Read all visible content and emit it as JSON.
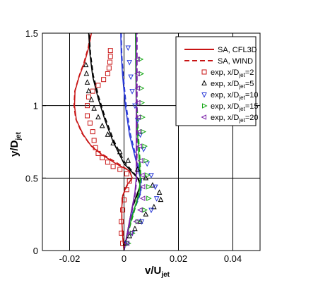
{
  "chart_data": {
    "type": "line",
    "xlabel": "v/U",
    "xlabel_sub": "jet",
    "ylabel": "y/D",
    "ylabel_sub": "jet",
    "xlim": [
      -0.03,
      0.05
    ],
    "ylim": [
      0,
      1.5
    ],
    "xticks": [
      -0.02,
      0,
      0.02,
      0.04
    ],
    "xtick_labels": [
      "-0.02",
      "0",
      "0.02",
      "0.04"
    ],
    "yticks": [
      0,
      0.5,
      1,
      1.5
    ],
    "ytick_labels": [
      "0",
      "0.5",
      "1",
      "1.5"
    ],
    "grid": true,
    "legend_position": "top-right",
    "legend": [
      {
        "key": "cfl3d",
        "label": "SA, CFL3D",
        "kind": "solid",
        "color": "#c81414"
      },
      {
        "key": "wind",
        "label": "SA, WIND",
        "kind": "dashed",
        "color": "#c81414"
      },
      {
        "key": "exp2",
        "label": "exp, x/D",
        "sub": "jet",
        "suffix": "=2",
        "kind": "marker",
        "marker": "square",
        "color": "#c81414"
      },
      {
        "key": "exp5",
        "label": "exp, x/D",
        "sub": "jet",
        "suffix": "=5",
        "kind": "marker",
        "marker": "triangle-up",
        "color": "#000000"
      },
      {
        "key": "exp10",
        "label": "exp, x/D",
        "sub": "jet",
        "suffix": "=10",
        "kind": "marker",
        "marker": "triangle-down",
        "color": "#2a3ad8"
      },
      {
        "key": "exp15",
        "label": "exp, x/D",
        "sub": "jet",
        "suffix": "=15",
        "kind": "marker",
        "marker": "triangle-right",
        "color": "#18a818"
      },
      {
        "key": "exp20",
        "label": "exp, x/D",
        "sub": "jet",
        "suffix": "=20",
        "kind": "marker",
        "marker": "triangle-left",
        "color": "#7a20a8"
      }
    ],
    "series": [
      {
        "key": "cfl3d_2",
        "kind": "solid",
        "color": "#c81414",
        "points": [
          [
            0,
            0
          ],
          [
            -0.0005,
            0.1
          ],
          [
            -0.0008,
            0.2
          ],
          [
            -0.0008,
            0.3
          ],
          [
            -0.0005,
            0.38
          ],
          [
            0.001,
            0.45
          ],
          [
            0.003,
            0.5
          ],
          [
            0.002,
            0.55
          ],
          [
            -0.003,
            0.6
          ],
          [
            -0.008,
            0.66
          ],
          [
            -0.012,
            0.72
          ],
          [
            -0.015,
            0.8
          ],
          [
            -0.0175,
            0.9
          ],
          [
            -0.0182,
            1.0
          ],
          [
            -0.018,
            1.1
          ],
          [
            -0.0165,
            1.2
          ],
          [
            -0.0145,
            1.3
          ],
          [
            -0.013,
            1.4
          ],
          [
            -0.012,
            1.5
          ]
        ]
      },
      {
        "key": "wind_2",
        "kind": "dashed",
        "color": "#c81414",
        "points": [
          [
            0,
            0
          ],
          [
            -0.0005,
            0.1
          ],
          [
            -0.0008,
            0.2
          ],
          [
            -0.0008,
            0.3
          ],
          [
            -0.0004,
            0.38
          ],
          [
            0.0012,
            0.45
          ],
          [
            0.003,
            0.5
          ],
          [
            0.002,
            0.55
          ],
          [
            -0.003,
            0.61
          ],
          [
            -0.0085,
            0.67
          ],
          [
            -0.0125,
            0.73
          ],
          [
            -0.0155,
            0.81
          ],
          [
            -0.0178,
            0.91
          ],
          [
            -0.0184,
            1.0
          ],
          [
            -0.0181,
            1.1
          ],
          [
            -0.0166,
            1.2
          ],
          [
            -0.0147,
            1.3
          ],
          [
            -0.0132,
            1.4
          ],
          [
            -0.0122,
            1.5
          ]
        ]
      },
      {
        "key": "cfl3d_5",
        "kind": "solid",
        "color": "#000000",
        "points": [
          [
            0,
            0
          ],
          [
            0.001,
            0.1
          ],
          [
            0.002,
            0.2
          ],
          [
            0.003,
            0.3
          ],
          [
            0.005,
            0.4
          ],
          [
            0.006,
            0.45
          ],
          [
            0.005,
            0.5
          ],
          [
            0.0,
            0.6
          ],
          [
            -0.004,
            0.75
          ],
          [
            -0.007,
            0.9
          ],
          [
            -0.0095,
            1.05
          ],
          [
            -0.0115,
            1.2
          ],
          [
            -0.0125,
            1.35
          ],
          [
            -0.013,
            1.5
          ]
        ]
      },
      {
        "key": "wind_5",
        "kind": "dashed",
        "color": "#000000",
        "points": [
          [
            0,
            0
          ],
          [
            0.001,
            0.1
          ],
          [
            0.0022,
            0.2
          ],
          [
            0.0032,
            0.3
          ],
          [
            0.0052,
            0.4
          ],
          [
            0.0062,
            0.45
          ],
          [
            0.0052,
            0.5
          ],
          [
            0.0002,
            0.61
          ],
          [
            -0.0038,
            0.76
          ],
          [
            -0.0068,
            0.91
          ],
          [
            -0.0093,
            1.06
          ],
          [
            -0.0113,
            1.21
          ],
          [
            -0.0123,
            1.36
          ],
          [
            -0.0128,
            1.5
          ]
        ]
      },
      {
        "key": "cfl3d_10",
        "kind": "solid",
        "color": "#2a3ad8",
        "points": [
          [
            0,
            0
          ],
          [
            0.001,
            0.1
          ],
          [
            0.002,
            0.2
          ],
          [
            0.004,
            0.3
          ],
          [
            0.006,
            0.4
          ],
          [
            0.006,
            0.5
          ],
          [
            0.004,
            0.65
          ],
          [
            0.002,
            0.8
          ],
          [
            0.0005,
            1.0
          ],
          [
            -0.0005,
            1.2
          ],
          [
            -0.001,
            1.35
          ],
          [
            -0.0012,
            1.5
          ]
        ]
      },
      {
        "key": "wind_10",
        "kind": "dashed",
        "color": "#2a3ad8",
        "points": [
          [
            0,
            0
          ],
          [
            0.0012,
            0.1
          ],
          [
            0.0024,
            0.2
          ],
          [
            0.0042,
            0.3
          ],
          [
            0.0062,
            0.4
          ],
          [
            0.0064,
            0.5
          ],
          [
            0.0044,
            0.65
          ],
          [
            0.0024,
            0.8
          ],
          [
            0.0008,
            1.0
          ],
          [
            -0.0002,
            1.2
          ],
          [
            -0.0008,
            1.35
          ],
          [
            -0.001,
            1.5
          ]
        ]
      },
      {
        "key": "cfl3d_15",
        "kind": "solid",
        "color": "#18a818",
        "points": [
          [
            0,
            0
          ],
          [
            0.001,
            0.1
          ],
          [
            0.0025,
            0.2
          ],
          [
            0.004,
            0.3
          ],
          [
            0.0055,
            0.4
          ],
          [
            0.006,
            0.5
          ],
          [
            0.0055,
            0.65
          ],
          [
            0.005,
            0.8
          ],
          [
            0.0045,
            1.0
          ],
          [
            0.0043,
            1.25
          ],
          [
            0.0042,
            1.5
          ]
        ]
      },
      {
        "key": "wind_15",
        "kind": "dashed",
        "color": "#18a818",
        "points": [
          [
            0,
            0
          ],
          [
            0.0012,
            0.1
          ],
          [
            0.0027,
            0.2
          ],
          [
            0.0042,
            0.3
          ],
          [
            0.0057,
            0.4
          ],
          [
            0.0062,
            0.5
          ],
          [
            0.0058,
            0.65
          ],
          [
            0.0053,
            0.8
          ],
          [
            0.0048,
            1.0
          ],
          [
            0.0046,
            1.25
          ],
          [
            0.0045,
            1.5
          ]
        ]
      },
      {
        "key": "cfl3d_20",
        "kind": "solid",
        "color": "#7a20a8",
        "points": [
          [
            0,
            0
          ],
          [
            0.001,
            0.1
          ],
          [
            0.002,
            0.2
          ],
          [
            0.003,
            0.3
          ],
          [
            0.004,
            0.4
          ],
          [
            0.0045,
            0.5
          ],
          [
            0.0045,
            0.7
          ],
          [
            0.0045,
            0.9
          ],
          [
            0.0045,
            1.1
          ],
          [
            0.0045,
            1.3
          ],
          [
            0.0045,
            1.5
          ]
        ]
      },
      {
        "key": "wind_20",
        "kind": "dashed",
        "color": "#7a20a8",
        "points": [
          [
            0,
            0
          ],
          [
            0.0012,
            0.1
          ],
          [
            0.0022,
            0.2
          ],
          [
            0.0032,
            0.3
          ],
          [
            0.0042,
            0.4
          ],
          [
            0.0047,
            0.5
          ],
          [
            0.0048,
            0.7
          ],
          [
            0.0048,
            0.9
          ],
          [
            0.0048,
            1.1
          ],
          [
            0.0048,
            1.3
          ],
          [
            0.0048,
            1.5
          ]
        ]
      },
      {
        "key": "exp2",
        "kind": "marker",
        "marker": "square",
        "color": "#c81414",
        "points": [
          [
            -0.0005,
            0.05
          ],
          [
            -0.001,
            0.12
          ],
          [
            -0.001,
            0.2
          ],
          [
            -0.0005,
            0.28
          ],
          [
            0.0,
            0.35
          ],
          [
            0.001,
            0.42
          ],
          [
            0.002,
            0.48
          ],
          [
            0.001,
            0.53
          ],
          [
            -0.0015,
            0.56
          ],
          [
            -0.004,
            0.58
          ],
          [
            -0.006,
            0.61
          ],
          [
            -0.008,
            0.64
          ],
          [
            -0.0095,
            0.67
          ],
          [
            -0.0105,
            0.71
          ],
          [
            -0.011,
            0.76
          ],
          [
            -0.0115,
            0.82
          ],
          [
            -0.0125,
            0.88
          ],
          [
            -0.0135,
            0.93
          ],
          [
            -0.0135,
            1.0
          ],
          [
            -0.013,
            1.06
          ],
          [
            -0.0115,
            1.1
          ],
          [
            -0.0095,
            1.14
          ],
          [
            -0.0075,
            1.18
          ],
          [
            -0.006,
            1.22
          ],
          [
            -0.0055,
            1.26
          ],
          [
            -0.0052,
            1.3
          ],
          [
            -0.005,
            1.34
          ],
          [
            -0.005,
            1.38
          ]
        ]
      },
      {
        "key": "exp5",
        "kind": "marker",
        "marker": "triangle-up",
        "color": "#000000",
        "points": [
          [
            0.0005,
            0.05
          ],
          [
            0.002,
            0.1
          ],
          [
            0.004,
            0.15
          ],
          [
            0.006,
            0.2
          ],
          [
            0.008,
            0.25
          ],
          [
            0.011,
            0.3
          ],
          [
            0.0135,
            0.35
          ],
          [
            0.013,
            0.4
          ],
          [
            0.0105,
            0.45
          ],
          [
            0.008,
            0.5
          ],
          [
            0.005,
            0.56
          ],
          [
            0.0015,
            0.62
          ],
          [
            -0.0015,
            0.68
          ],
          [
            -0.004,
            0.74
          ],
          [
            -0.006,
            0.8
          ],
          [
            -0.008,
            0.86
          ],
          [
            -0.0095,
            0.92
          ],
          [
            -0.011,
            0.98
          ],
          [
            -0.012,
            1.04
          ],
          [
            -0.013,
            1.1
          ],
          [
            -0.0135,
            1.16
          ],
          [
            -0.0138,
            1.22
          ],
          [
            -0.014,
            1.28
          ]
        ]
      },
      {
        "key": "exp10",
        "kind": "marker",
        "marker": "triangle-down",
        "color": "#2a3ad8",
        "points": [
          [
            0.001,
            0.05
          ],
          [
            0.003,
            0.12
          ],
          [
            0.0065,
            0.2
          ],
          [
            0.01,
            0.28
          ],
          [
            0.012,
            0.36
          ],
          [
            0.0115,
            0.44
          ],
          [
            0.01,
            0.52
          ],
          [
            0.0085,
            0.6
          ],
          [
            0.0072,
            0.7
          ],
          [
            0.006,
            0.8
          ],
          [
            0.005,
            0.9
          ],
          [
            0.004,
            1.0
          ],
          [
            0.003,
            1.1
          ],
          [
            0.0025,
            1.2
          ],
          [
            0.002,
            1.3
          ],
          [
            0.0015,
            1.4
          ]
        ]
      },
      {
        "key": "exp15",
        "kind": "marker",
        "marker": "triangle-right",
        "color": "#18a818",
        "points": [
          [
            0.0015,
            0.05
          ],
          [
            0.003,
            0.12
          ],
          [
            0.005,
            0.2
          ],
          [
            0.0075,
            0.28
          ],
          [
            0.009,
            0.36
          ],
          [
            0.009,
            0.44
          ],
          [
            0.0085,
            0.52
          ],
          [
            0.008,
            0.62
          ],
          [
            0.0075,
            0.72
          ],
          [
            0.007,
            0.82
          ],
          [
            0.0067,
            0.92
          ],
          [
            0.0065,
            1.02
          ],
          [
            0.0063,
            1.12
          ],
          [
            0.0062,
            1.22
          ],
          [
            0.006,
            1.32
          ]
        ]
      },
      {
        "key": "exp20",
        "kind": "marker",
        "marker": "triangle-left",
        "color": "#7a20a8",
        "points": [
          [
            0.0012,
            0.05
          ],
          [
            0.0025,
            0.12
          ],
          [
            0.0045,
            0.2
          ],
          [
            0.006,
            0.28
          ],
          [
            0.007,
            0.36
          ],
          [
            0.007,
            0.44
          ],
          [
            0.0068,
            0.52
          ],
          [
            0.0062,
            0.62
          ],
          [
            0.0058,
            0.72
          ],
          [
            0.0055,
            0.82
          ],
          [
            0.0053,
            0.92
          ],
          [
            0.0052,
            1.02
          ],
          [
            0.0051,
            1.12
          ],
          [
            0.005,
            1.22
          ],
          [
            0.005,
            1.32
          ]
        ]
      }
    ]
  }
}
